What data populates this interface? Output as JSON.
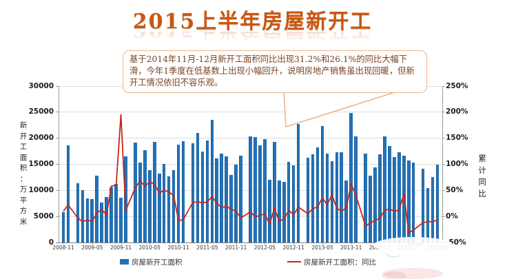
{
  "title": "2015上半年房屋新开工",
  "callout": {
    "text": "基于2014年11月-12月新开工面积同比出现31.2%和26.1%的同比大幅下滑，今年1季度在低基数上出现小幅回升，说明房地产销售虽出现回暖，但新开工情况依旧不容乐观。"
  },
  "colors": {
    "bar": "#2272b8",
    "line": "#cb2417",
    "title": "#c9570f",
    "callout_border": "#eeb489",
    "grid": "#dcdcdc"
  },
  "legend": [
    {
      "label": "房屋新开工面积",
      "type": "bar"
    },
    {
      "label": "房屋新开工面积：同比",
      "type": "line"
    }
  ],
  "chart_data": {
    "type": "bar",
    "title": "2015上半年房屋新开工",
    "left_axis": {
      "title": "新开工面积：万平方米",
      "min": 0,
      "max": 30000,
      "tick_labels": [
        "0",
        "5000",
        "10000",
        "15000",
        "20000",
        "25000",
        "30000"
      ]
    },
    "right_axis": {
      "title": "累计同比",
      "min": -50,
      "max": 250,
      "tick_labels": [
        "-50%",
        "0%",
        "50%",
        "100%",
        "150%",
        "200%",
        "250%"
      ]
    },
    "x_tick_every": 6,
    "grid": true,
    "legend_position": "bottom",
    "categories": [
      "2008-11",
      "2008-12",
      "2009-01",
      "2009-02",
      "2009-03",
      "2009-04",
      "2009-05",
      "2009-06",
      "2009-07",
      "2009-08",
      "2009-09",
      "2009-10",
      "2009-11",
      "2009-12",
      "2010-01",
      "2010-02",
      "2010-03",
      "2010-04",
      "2010-05",
      "2010-06",
      "2010-07",
      "2010-08",
      "2010-09",
      "2010-10",
      "2010-11",
      "2010-12",
      "2011-01",
      "2011-02",
      "2011-03",
      "2011-04",
      "2011-05",
      "2011-06",
      "2011-07",
      "2011-08",
      "2011-09",
      "2011-10",
      "2011-11",
      "2011-12",
      "2012-01",
      "2012-02",
      "2012-03",
      "2012-04",
      "2012-05",
      "2012-06",
      "2012-07",
      "2012-08",
      "2012-09",
      "2012-10",
      "2012-11",
      "2012-12",
      "2013-01",
      "2013-02",
      "2013-03",
      "2013-04",
      "2013-05",
      "2013-06",
      "2013-07",
      "2013-08",
      "2013-09",
      "2013-10",
      "2013-11",
      "2013-12",
      "2014-01",
      "2014-02",
      "2014-03",
      "2014-04",
      "2014-05",
      "2014-06",
      "2014-07",
      "2014-08",
      "2014-09",
      "2014-10",
      "2014-11",
      "2014-12",
      "2015-01",
      "2015-02",
      "2015-03",
      "2015-04",
      "2015-05"
    ],
    "series": [
      {
        "name": "房屋新开工面积",
        "type": "bar",
        "axis": "left",
        "unit": "万平方米",
        "values": [
          5800,
          18600,
          null,
          11300,
          10000,
          8400,
          8300,
          12800,
          7700,
          8700,
          10600,
          11200,
          8600,
          16500,
          null,
          19200,
          15300,
          17700,
          13900,
          19300,
          13200,
          15100,
          12700,
          13900,
          18800,
          19400,
          null,
          19000,
          21000,
          17400,
          19600,
          23500,
          16100,
          17100,
          16500,
          13000,
          15000,
          16700,
          null,
          20400,
          20200,
          18600,
          19800,
          12000,
          19300,
          11900,
          11600,
          15500,
          14800,
          22700,
          null,
          16300,
          16900,
          18300,
          22400,
          17100,
          15600,
          17300,
          17250,
          11900,
          24900,
          20300,
          null,
          17000,
          12800,
          14400,
          16900,
          20400,
          18500,
          16400,
          17250,
          16600,
          15700,
          15300,
          null,
          14100,
          10500,
          12500,
          15000
        ]
      },
      {
        "name": "房屋新开工面积：同比",
        "type": "line",
        "axis": "right",
        "unit": "%",
        "values": [
          10,
          22,
          null,
          -3,
          -10,
          -7,
          -10,
          7,
          13,
          3,
          58,
          60,
          195,
          12,
          null,
          55,
          68,
          58,
          66,
          62,
          45,
          50,
          47,
          40,
          -8,
          -6,
          null,
          27,
          28,
          26,
          28,
          38,
          25,
          17,
          19,
          14,
          10,
          -3,
          null,
          9,
          -1,
          2,
          5,
          -15,
          16,
          -9,
          -5,
          12,
          3,
          18,
          null,
          5,
          15,
          18,
          36,
          22,
          42,
          16,
          10,
          16,
          63,
          40,
          null,
          -19,
          -12,
          -8,
          -3,
          12,
          14,
          10,
          12,
          44,
          -31.2,
          -26.1,
          null,
          -12,
          -10,
          -10,
          -7
        ]
      }
    ]
  }
}
